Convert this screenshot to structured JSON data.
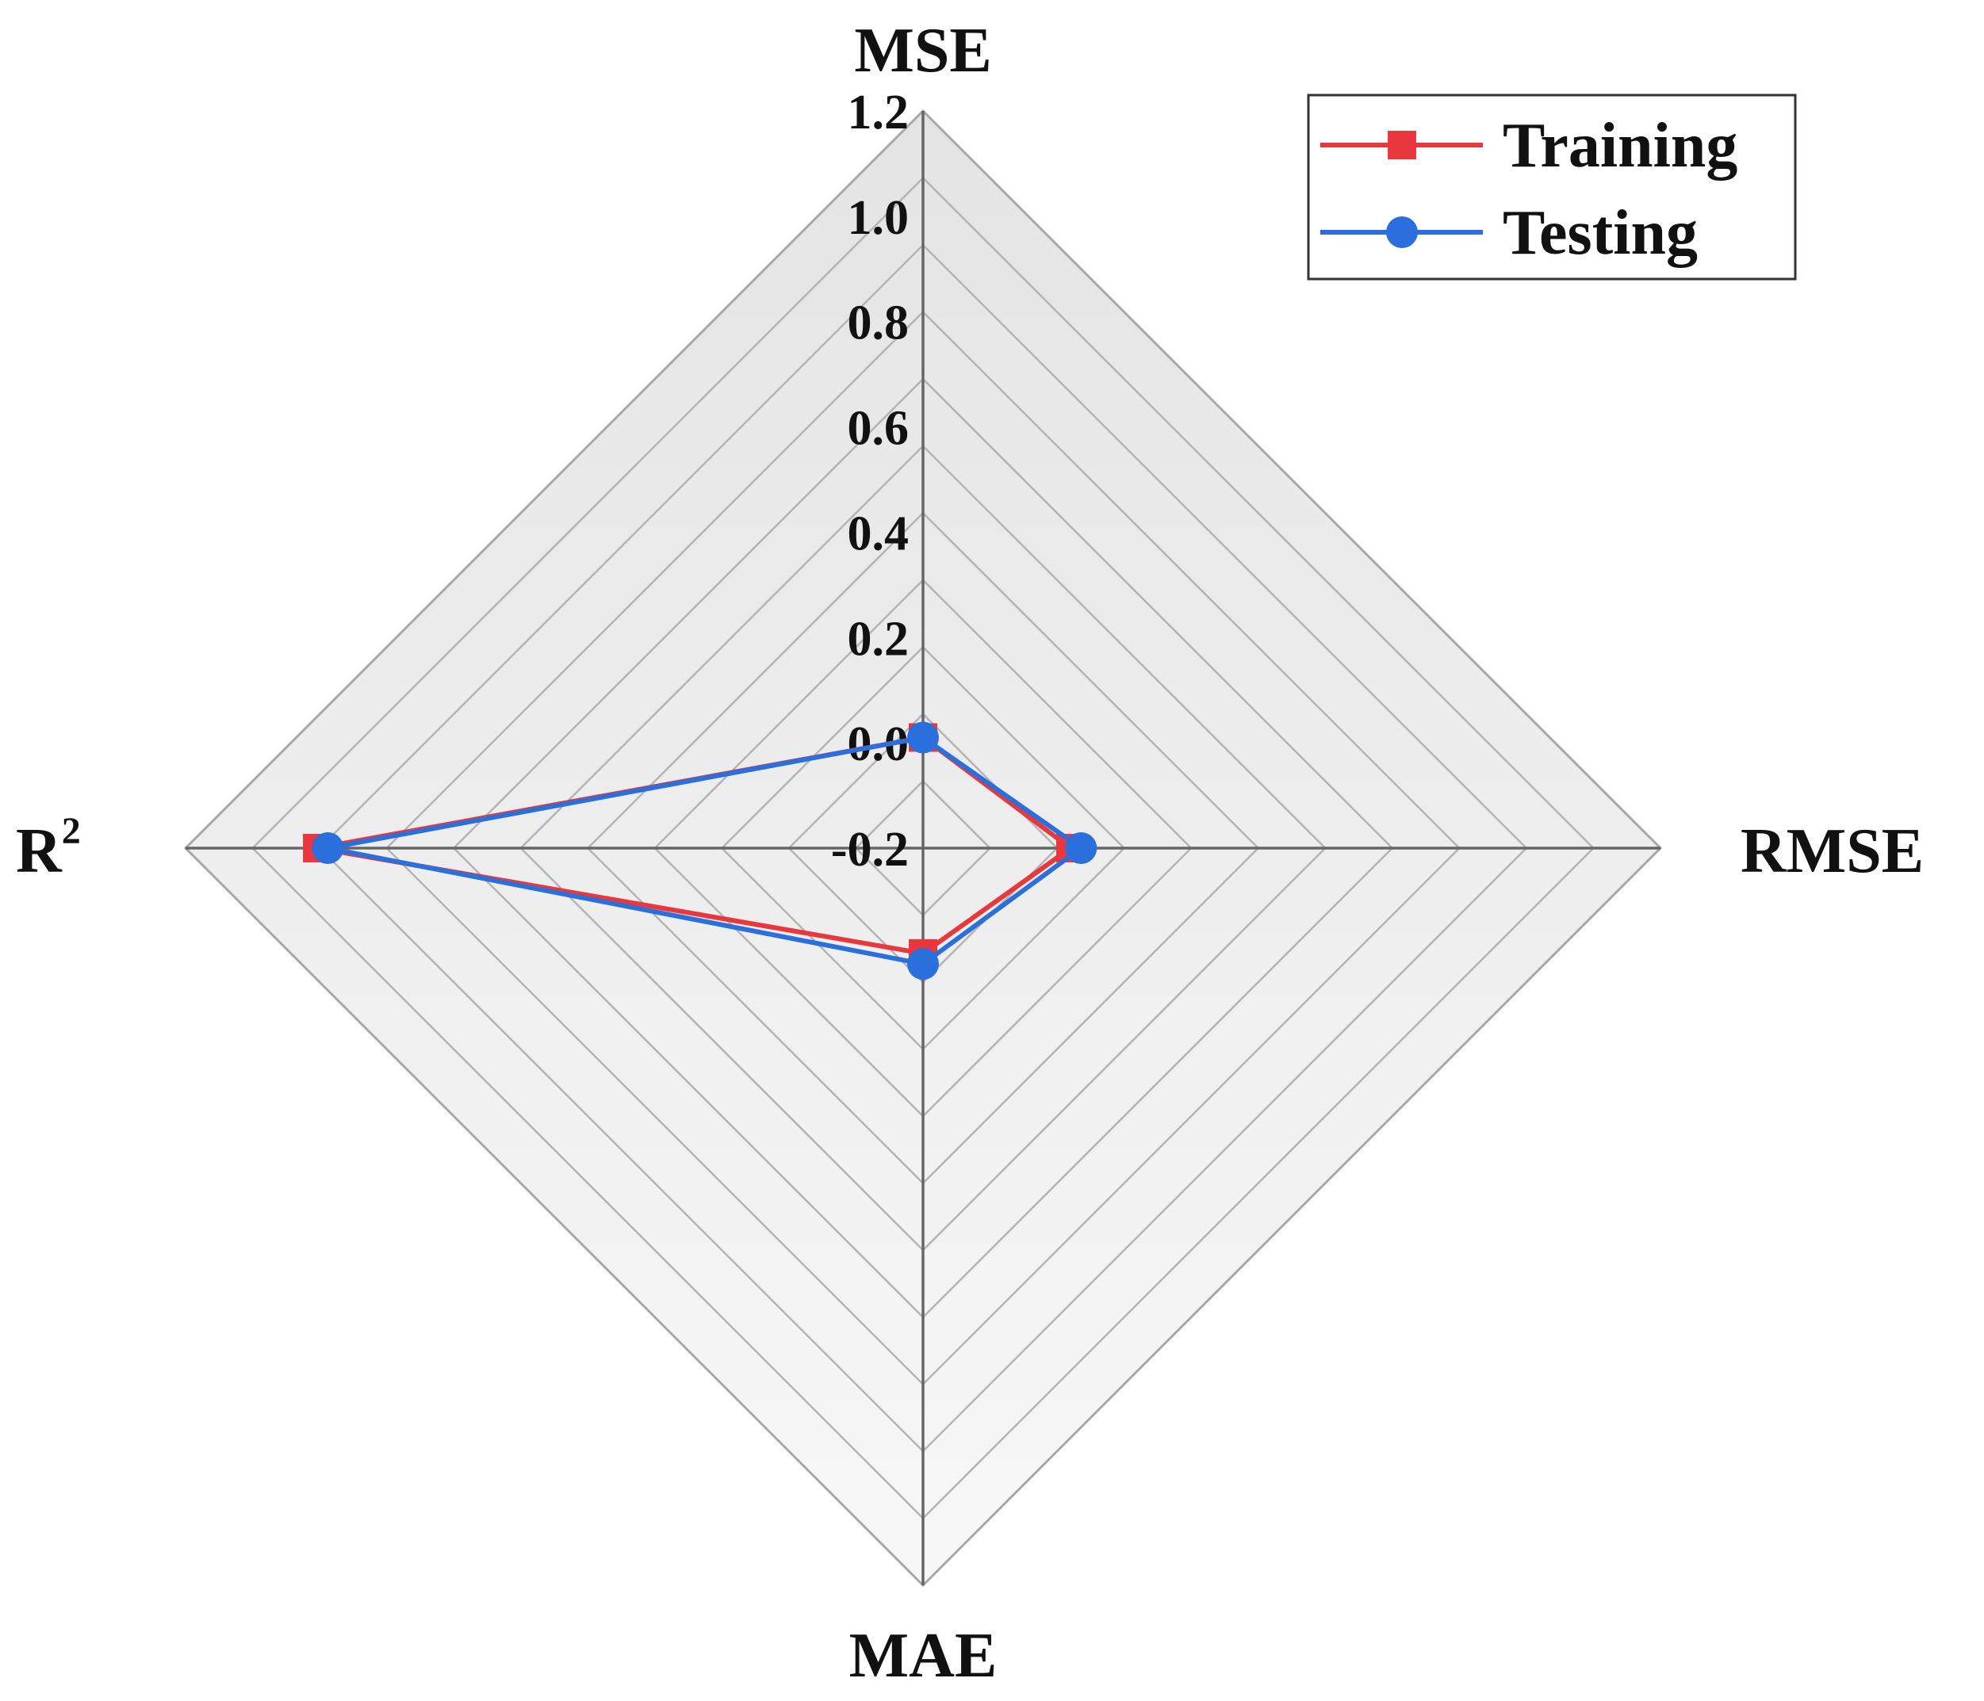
{
  "chart_data": {
    "type": "radar",
    "axes": [
      {
        "name": "MSE",
        "sup": ""
      },
      {
        "name": "RMSE",
        "sup": ""
      },
      {
        "name": "MAE",
        "sup": ""
      },
      {
        "name": "R",
        "sup": "2"
      }
    ],
    "radial_ticks": [
      "-0.2",
      "0.0",
      "0.2",
      "0.4",
      "0.6",
      "0.8",
      "1.0",
      "1.2"
    ],
    "rlim": [
      -0.2,
      1.2
    ],
    "grid": true,
    "legend_position": "top-right",
    "series": [
      {
        "name": "Training",
        "marker": "square",
        "color": "#e8383d",
        "values": [
          0.01,
          0.08,
          0.0,
          0.95
        ]
      },
      {
        "name": "Testing",
        "marker": "circle",
        "color": "#2a6fdb",
        "values": [
          0.01,
          0.1,
          0.02,
          0.93
        ]
      }
    ]
  }
}
